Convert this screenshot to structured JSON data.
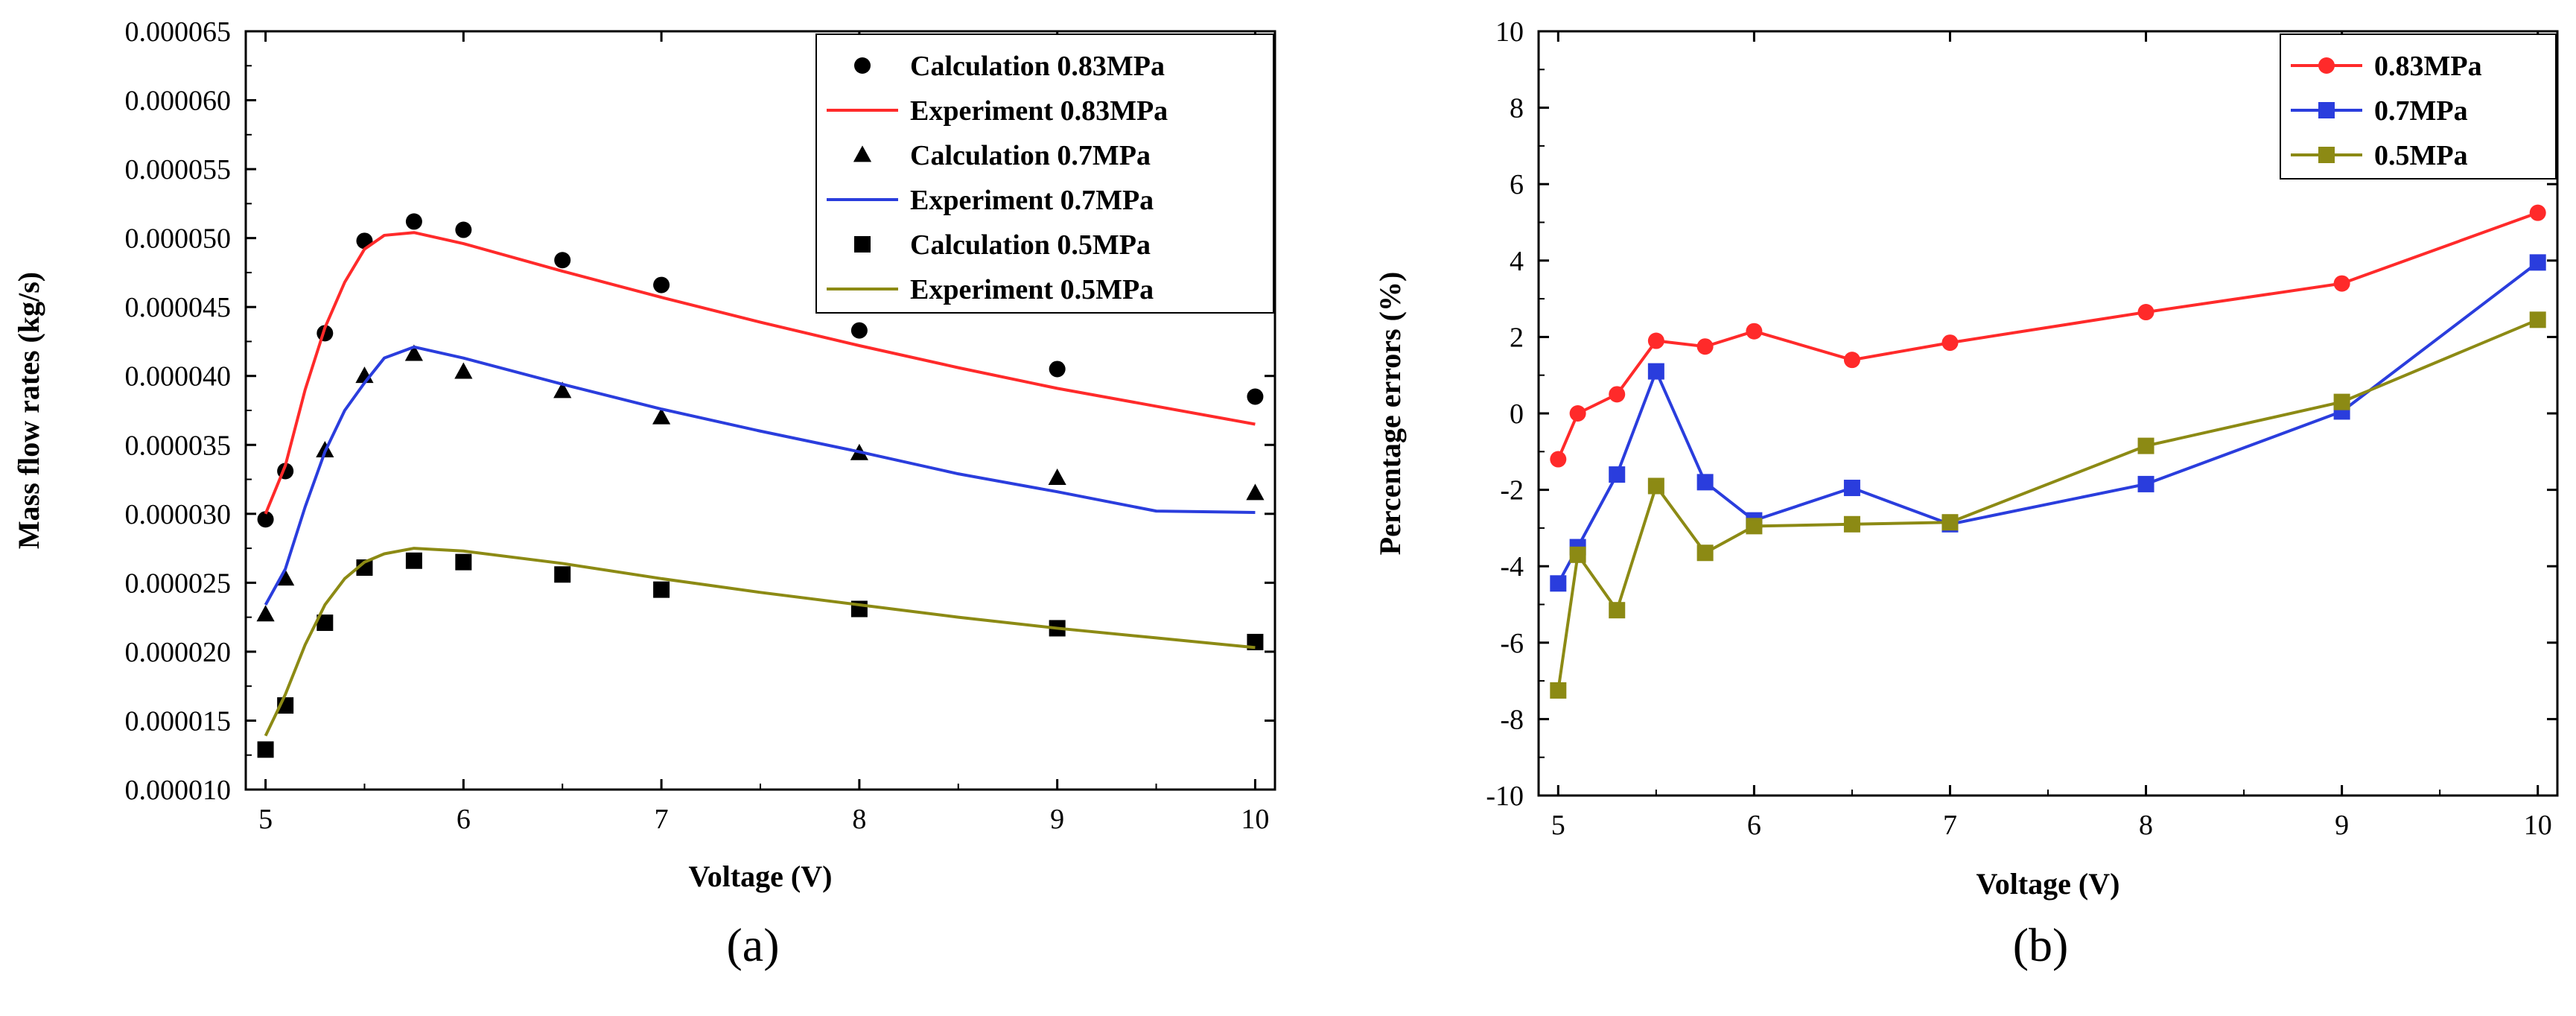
{
  "chart_data": [
    {
      "type": "line",
      "panel_label": "(a)",
      "xlabel": "Voltage (V)",
      "ylabel": "Mass flow rates (kg/s)",
      "xlim": [
        4.9,
        10.1
      ],
      "ylim": [
        1e-05,
        6.5e-05
      ],
      "xticks": [
        5,
        6,
        7,
        8,
        9,
        10
      ],
      "xtick_labels": [
        "5",
        "6",
        "7",
        "8",
        "9",
        "10"
      ],
      "yticks": [
        1e-05,
        1.5e-05,
        2e-05,
        2.5e-05,
        3e-05,
        3.5e-05,
        4e-05,
        4.5e-05,
        5e-05,
        5.5e-05,
        6e-05,
        6.5e-05
      ],
      "ytick_labels": [
        "0.000010",
        "0.000015",
        "0.000020",
        "0.000025",
        "0.000030",
        "0.000035",
        "0.000040",
        "0.000045",
        "0.000050",
        "0.000055",
        "0.000060",
        "0.000065"
      ],
      "legend_position": "top-right",
      "series": [
        {
          "name": "Calculation 0.83MPa",
          "kind": "scatter",
          "marker": "circle",
          "color": "#000000",
          "x": [
            5,
            5.1,
            5.3,
            5.5,
            5.75,
            6,
            6.5,
            7,
            8,
            9,
            10
          ],
          "y": [
            2.96e-05,
            3.31e-05,
            4.31e-05,
            4.98e-05,
            5.12e-05,
            5.06e-05,
            4.84e-05,
            4.66e-05,
            4.33e-05,
            4.05e-05,
            3.85e-05
          ]
        },
        {
          "name": "Experiment 0.83MPa",
          "kind": "line",
          "color": "#ff2a2a",
          "x": [
            5,
            5.1,
            5.2,
            5.3,
            5.4,
            5.5,
            5.6,
            5.75,
            6,
            6.5,
            7,
            7.5,
            8,
            8.5,
            9,
            9.5,
            10
          ],
          "y": [
            3e-05,
            3.35e-05,
            3.9e-05,
            4.35e-05,
            4.68e-05,
            4.92e-05,
            5.02e-05,
            5.04e-05,
            4.96e-05,
            4.76e-05,
            4.57e-05,
            4.39e-05,
            4.22e-05,
            4.06e-05,
            3.91e-05,
            3.78e-05,
            3.65e-05
          ]
        },
        {
          "name": "Calculation 0.7MPa",
          "kind": "scatter",
          "marker": "triangle",
          "color": "#000000",
          "x": [
            5,
            5.1,
            5.3,
            5.5,
            5.75,
            6,
            6.5,
            7,
            8,
            9,
            10
          ],
          "y": [
            2.27e-05,
            2.53e-05,
            3.46e-05,
            4e-05,
            4.16e-05,
            4.03e-05,
            3.89e-05,
            3.7e-05,
            3.44e-05,
            3.26e-05,
            3.15e-05
          ]
        },
        {
          "name": "Experiment 0.7MPa",
          "kind": "line",
          "color": "#2a3ddd",
          "x": [
            5,
            5.1,
            5.2,
            5.3,
            5.4,
            5.5,
            5.6,
            5.75,
            6,
            6.5,
            7,
            7.5,
            8,
            8.5,
            9,
            9.5,
            10
          ],
          "y": [
            2.34e-05,
            2.6e-05,
            3.05e-05,
            3.45e-05,
            3.75e-05,
            3.95e-05,
            4.13e-05,
            4.21e-05,
            4.13e-05,
            3.94e-05,
            3.76e-05,
            3.6e-05,
            3.45e-05,
            3.29e-05,
            3.16e-05,
            3.02e-05,
            3.01e-05
          ]
        },
        {
          "name": "Calculation 0.5MPa",
          "kind": "scatter",
          "marker": "square",
          "color": "#000000",
          "x": [
            5,
            5.1,
            5.3,
            5.5,
            5.75,
            6,
            6.5,
            7,
            8,
            9,
            10
          ],
          "y": [
            1.29e-05,
            1.61e-05,
            2.21e-05,
            2.61e-05,
            2.66e-05,
            2.65e-05,
            2.56e-05,
            2.45e-05,
            2.31e-05,
            2.17e-05,
            2.07e-05
          ]
        },
        {
          "name": "Experiment 0.5MPa",
          "kind": "line",
          "color": "#8c8a14",
          "x": [
            5,
            5.1,
            5.2,
            5.3,
            5.4,
            5.5,
            5.6,
            5.75,
            6,
            6.5,
            7,
            7.5,
            8,
            8.5,
            9,
            9.5,
            10
          ],
          "y": [
            1.39e-05,
            1.69e-05,
            2.05e-05,
            2.34e-05,
            2.53e-05,
            2.65e-05,
            2.71e-05,
            2.75e-05,
            2.73e-05,
            2.64e-05,
            2.53e-05,
            2.43e-05,
            2.34e-05,
            2.25e-05,
            2.17e-05,
            2.1e-05,
            2.03e-05
          ]
        }
      ]
    },
    {
      "type": "line",
      "panel_label": "(b)",
      "xlabel": "Voltage (V)",
      "ylabel": "Percentage errors (%)",
      "xlim": [
        4.9,
        10.1
      ],
      "ylim": [
        -10,
        10
      ],
      "xticks": [
        5,
        6,
        7,
        8,
        9,
        10
      ],
      "xtick_labels": [
        "5",
        "6",
        "7",
        "8",
        "9",
        "10"
      ],
      "yticks": [
        -10,
        -8,
        -6,
        -4,
        -2,
        0,
        2,
        4,
        6,
        8,
        10
      ],
      "ytick_labels": [
        "-10",
        "-8",
        "-6",
        "-4",
        "-2",
        "0",
        "2",
        "4",
        "6",
        "8",
        "10"
      ],
      "legend_position": "top-right",
      "series": [
        {
          "name": "0.83MPa",
          "marker": "circle",
          "color": "#ff2a2a",
          "x": [
            5,
            5.1,
            5.3,
            5.5,
            5.75,
            6,
            6.5,
            7,
            8,
            9,
            10
          ],
          "y": [
            -1.2,
            0.0,
            0.5,
            1.9,
            1.75,
            2.15,
            1.4,
            1.85,
            2.65,
            3.4,
            5.25
          ]
        },
        {
          "name": "0.7MPa",
          "marker": "square",
          "color": "#2a3ddd",
          "x": [
            5,
            5.1,
            5.3,
            5.5,
            5.75,
            6,
            6.5,
            7,
            8,
            9,
            10
          ],
          "y": [
            -4.45,
            -3.5,
            -1.6,
            1.1,
            -1.8,
            -2.8,
            -1.95,
            -2.9,
            -1.85,
            0.05,
            3.95
          ]
        },
        {
          "name": "0.5MPa",
          "marker": "square",
          "color": "#8c8a14",
          "x": [
            5,
            5.1,
            5.3,
            5.5,
            5.75,
            6,
            6.5,
            7,
            8,
            9,
            10
          ],
          "y": [
            -7.25,
            -3.7,
            -5.15,
            -1.9,
            -3.65,
            -2.95,
            -2.9,
            -2.85,
            -0.85,
            0.3,
            2.45
          ]
        }
      ]
    }
  ]
}
